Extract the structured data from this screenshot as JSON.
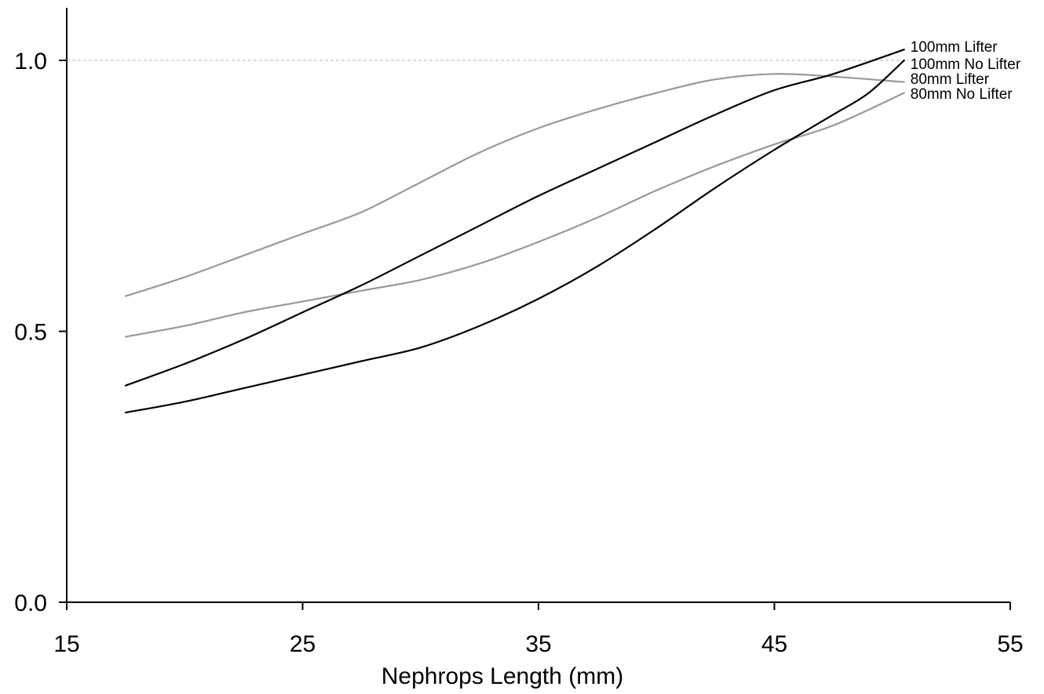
{
  "chart_data": {
    "type": "line",
    "title": "",
    "xlabel": "Nephrops Length (mm)",
    "ylabel": "",
    "xlim": [
      15,
      55
    ],
    "ylim": [
      0.0,
      1.1
    ],
    "xticks": [
      15,
      25,
      35,
      45,
      55
    ],
    "xtick_labels": [
      "15",
      "25",
      "35",
      "45",
      "55"
    ],
    "yticks": [
      0.0,
      0.5,
      1.0
    ],
    "ytick_labels": [
      "0.0",
      "0.5",
      "1.0"
    ],
    "reference_line": {
      "y": 1.0,
      "style": "dashed"
    },
    "grid": false,
    "legend": "labels at right end of lines",
    "series": [
      {
        "name": "100mm Lifter",
        "color": "#000000",
        "points": [
          [
            17.5,
            0.4
          ],
          [
            20,
            0.44
          ],
          [
            22.5,
            0.485
          ],
          [
            25,
            0.535
          ],
          [
            27.5,
            0.585
          ],
          [
            30,
            0.64
          ],
          [
            32.5,
            0.695
          ],
          [
            35,
            0.75
          ],
          [
            37.5,
            0.8
          ],
          [
            40,
            0.85
          ],
          [
            42.5,
            0.9
          ],
          [
            45,
            0.945
          ],
          [
            47.5,
            0.975
          ],
          [
            50.5,
            1.02
          ]
        ]
      },
      {
        "name": "100mm No Lifter",
        "color": "#000000",
        "points": [
          [
            17.5,
            0.35
          ],
          [
            20,
            0.37
          ],
          [
            22.5,
            0.395
          ],
          [
            25,
            0.42
          ],
          [
            27.5,
            0.445
          ],
          [
            30,
            0.47
          ],
          [
            32.5,
            0.51
          ],
          [
            35,
            0.56
          ],
          [
            37.5,
            0.62
          ],
          [
            40,
            0.69
          ],
          [
            42.5,
            0.765
          ],
          [
            45,
            0.835
          ],
          [
            47.5,
            0.9
          ],
          [
            49,
            0.94
          ],
          [
            50.5,
            1.0
          ]
        ]
      },
      {
        "name": "80mm Lifter",
        "color": "#999999",
        "points": [
          [
            17.5,
            0.565
          ],
          [
            20,
            0.6
          ],
          [
            22.5,
            0.64
          ],
          [
            25,
            0.68
          ],
          [
            27.5,
            0.72
          ],
          [
            30,
            0.775
          ],
          [
            32.5,
            0.83
          ],
          [
            35,
            0.875
          ],
          [
            37.5,
            0.91
          ],
          [
            40,
            0.94
          ],
          [
            42.5,
            0.965
          ],
          [
            45,
            0.975
          ],
          [
            47.5,
            0.97
          ],
          [
            50.5,
            0.96
          ]
        ]
      },
      {
        "name": "80mm No Lifter",
        "color": "#999999",
        "points": [
          [
            17.5,
            0.49
          ],
          [
            20,
            0.51
          ],
          [
            22.5,
            0.535
          ],
          [
            25,
            0.555
          ],
          [
            27.5,
            0.575
          ],
          [
            30,
            0.595
          ],
          [
            32.5,
            0.625
          ],
          [
            35,
            0.665
          ],
          [
            37.5,
            0.71
          ],
          [
            40,
            0.76
          ],
          [
            42.5,
            0.805
          ],
          [
            45,
            0.845
          ],
          [
            47.5,
            0.88
          ],
          [
            50.5,
            0.94
          ]
        ]
      }
    ]
  }
}
